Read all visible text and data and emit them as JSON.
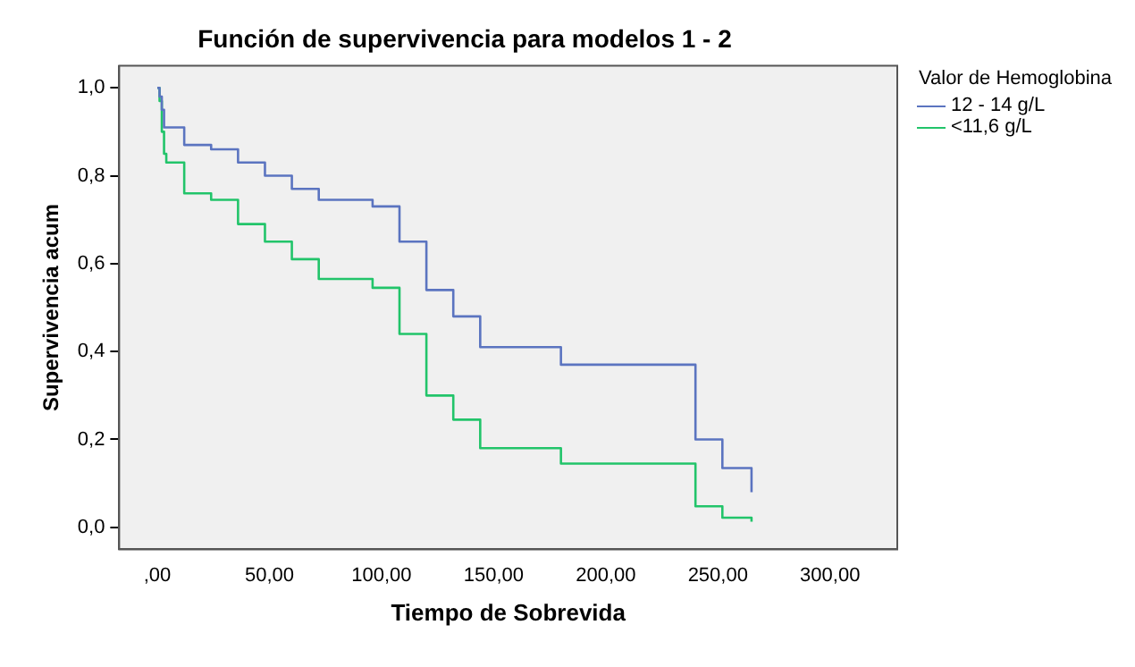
{
  "chart_data": {
    "type": "step",
    "title": "Función de supervivencia para modelos 1 - 2",
    "xlabel": "Tiempo de Sobrevida",
    "ylabel": "Supervivencia acum",
    "legend_title": "Valor de Hemoglobina",
    "legend": "right",
    "grid": false,
    "xlim": [
      -17,
      330
    ],
    "ylim": [
      -0.05,
      1.05
    ],
    "xticks": [
      {
        "value": 0,
        "label": ",00"
      },
      {
        "value": 50,
        "label": "50,00"
      },
      {
        "value": 100,
        "label": "100,00"
      },
      {
        "value": 150,
        "label": "150,00"
      },
      {
        "value": 200,
        "label": "200,00"
      },
      {
        "value": 250,
        "label": "250,00"
      },
      {
        "value": 300,
        "label": "300,00"
      }
    ],
    "yticks": [
      {
        "value": 0,
        "label": "0,0"
      },
      {
        "value": 0.2,
        "label": "0,2"
      },
      {
        "value": 0.4,
        "label": "0,4"
      },
      {
        "value": 0.6,
        "label": "0,6"
      },
      {
        "value": 0.8,
        "label": "0,8"
      },
      {
        "value": 1,
        "label": "1,0"
      }
    ],
    "series": [
      {
        "name": "12 - 14 g/L",
        "color": "#5b74c0",
        "x": [
          0,
          1,
          2,
          3,
          12,
          24,
          36,
          48,
          60,
          72,
          96,
          108,
          120,
          132,
          144,
          180,
          240,
          252,
          265
        ],
        "values": [
          1,
          0.98,
          0.95,
          0.91,
          0.87,
          0.86,
          0.83,
          0.8,
          0.77,
          0.745,
          0.73,
          0.65,
          0.54,
          0.48,
          0.41,
          0.37,
          0.2,
          0.135,
          0.08
        ]
      },
      {
        "name": "<11,6 g/L",
        "color": "#22c46a",
        "x": [
          0,
          1,
          2,
          3,
          4,
          12,
          24,
          36,
          48,
          60,
          72,
          96,
          108,
          120,
          132,
          144,
          180,
          240,
          252,
          265
        ],
        "values": [
          1,
          0.97,
          0.9,
          0.85,
          0.83,
          0.76,
          0.745,
          0.69,
          0.65,
          0.61,
          0.565,
          0.545,
          0.44,
          0.3,
          0.245,
          0.18,
          0.145,
          0.048,
          0.022,
          0.013
        ]
      }
    ]
  }
}
